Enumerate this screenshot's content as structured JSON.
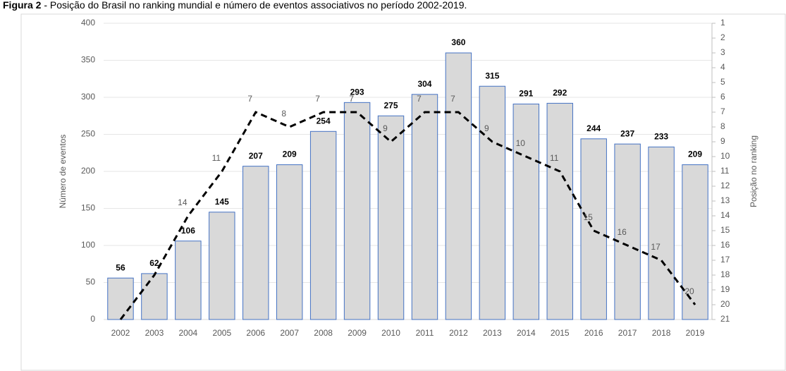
{
  "chart_data": {
    "type": "bar_line",
    "figure_label": "Figura 2",
    "title": "- Posição do Brasil no ranking mundial e número de eventos associativos no período 2002-2019.",
    "categories": [
      "2002",
      "2003",
      "2004",
      "2005",
      "2006",
      "2007",
      "2008",
      "2009",
      "2010",
      "2011",
      "2012",
      "2013",
      "2014",
      "2015",
      "2016",
      "2017",
      "2018",
      "2019"
    ],
    "series": [
      {
        "type": "bar",
        "color": "#d9d9d9",
        "edge_color": "#4472c4",
        "values": [
          56,
          62,
          106,
          145,
          207,
          209,
          254,
          293,
          275,
          304,
          360,
          315,
          291,
          292,
          244,
          237,
          233,
          209
        ]
      },
      {
        "type": "line",
        "axis": "y2",
        "color": "#000000",
        "dashed": true,
        "values": [
          21,
          18,
          14,
          11,
          7,
          8,
          7,
          7,
          9,
          7,
          7,
          9,
          10,
          11,
          15,
          16,
          17,
          20
        ],
        "value_labels": [
          null,
          null,
          "14",
          "11",
          "7",
          "8",
          "7",
          "7",
          "9",
          "7",
          "7",
          "9",
          "10",
          "11",
          "15",
          "16",
          "17",
          "20"
        ]
      }
    ],
    "ylabel": "Número de eventos",
    "y2label": "Posição no ranking",
    "ylim": [
      0,
      400
    ],
    "yticks": [
      0,
      50,
      100,
      150,
      200,
      250,
      300,
      350,
      400
    ],
    "y2lim": [
      21,
      1
    ],
    "y2ticks": [
      1,
      2,
      3,
      4,
      5,
      6,
      7,
      8,
      9,
      10,
      11,
      12,
      13,
      14,
      15,
      16,
      17,
      18,
      19,
      20,
      21
    ],
    "grid": true
  }
}
